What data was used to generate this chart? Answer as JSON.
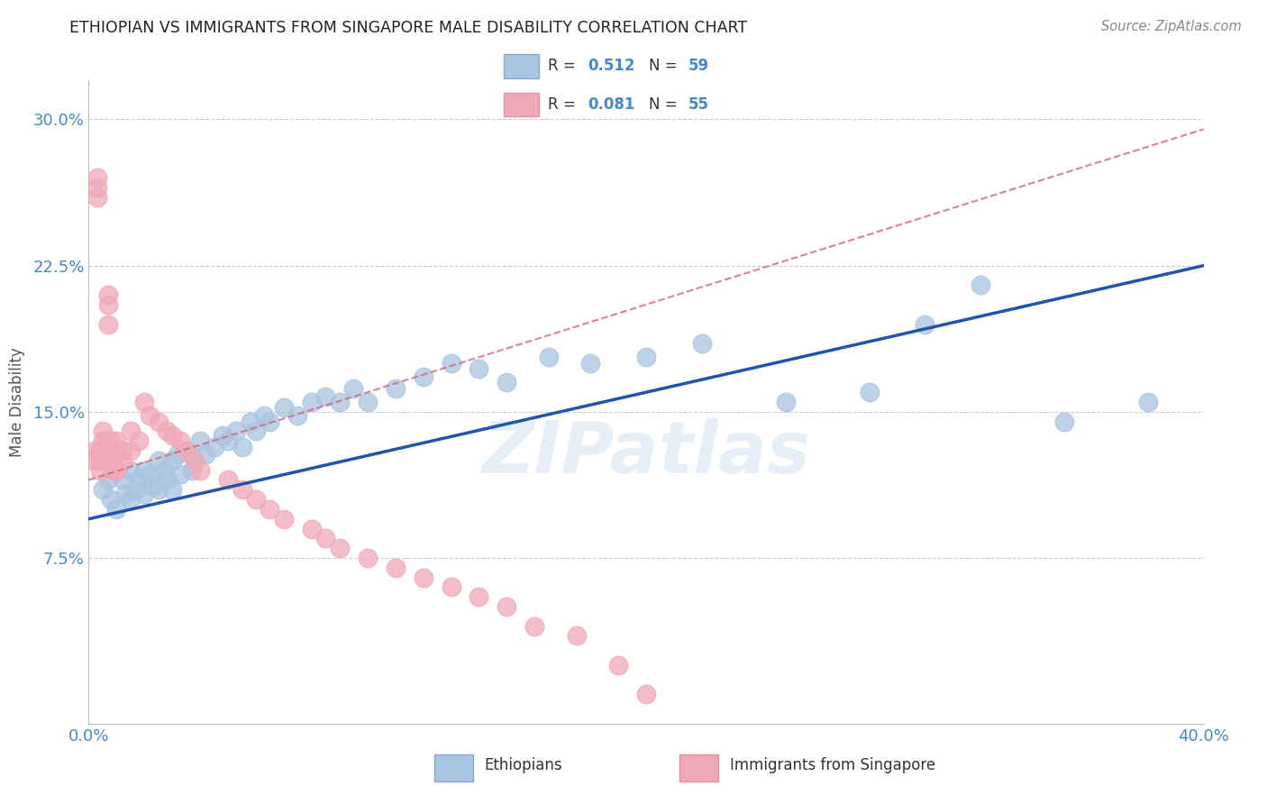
{
  "title": "ETHIOPIAN VS IMMIGRANTS FROM SINGAPORE MALE DISABILITY CORRELATION CHART",
  "source": "Source: ZipAtlas.com",
  "ylabel_text": "Male Disability",
  "xlim": [
    0.0,
    0.4
  ],
  "ylim": [
    -0.01,
    0.32
  ],
  "blue_color": "#a8c4e0",
  "pink_color": "#f0a8b8",
  "blue_line_color": "#2255aa",
  "pink_line_color": "#cc6677",
  "watermark": "ZIPatlas",
  "blue_scatter_x": [
    0.005,
    0.007,
    0.008,
    0.01,
    0.01,
    0.012,
    0.013,
    0.015,
    0.015,
    0.017,
    0.018,
    0.02,
    0.02,
    0.022,
    0.023,
    0.025,
    0.025,
    0.027,
    0.028,
    0.03,
    0.03,
    0.032,
    0.033,
    0.035,
    0.037,
    0.038,
    0.04,
    0.042,
    0.045,
    0.048,
    0.05,
    0.053,
    0.055,
    0.058,
    0.06,
    0.063,
    0.065,
    0.07,
    0.075,
    0.08,
    0.085,
    0.09,
    0.095,
    0.1,
    0.11,
    0.12,
    0.13,
    0.14,
    0.15,
    0.165,
    0.18,
    0.2,
    0.22,
    0.25,
    0.28,
    0.3,
    0.32,
    0.35,
    0.38
  ],
  "blue_scatter_y": [
    0.11,
    0.115,
    0.105,
    0.12,
    0.1,
    0.115,
    0.108,
    0.12,
    0.105,
    0.11,
    0.115,
    0.12,
    0.108,
    0.118,
    0.112,
    0.125,
    0.11,
    0.12,
    0.115,
    0.125,
    0.11,
    0.128,
    0.118,
    0.13,
    0.12,
    0.125,
    0.135,
    0.128,
    0.132,
    0.138,
    0.135,
    0.14,
    0.132,
    0.145,
    0.14,
    0.148,
    0.145,
    0.152,
    0.148,
    0.155,
    0.158,
    0.155,
    0.162,
    0.155,
    0.162,
    0.168,
    0.175,
    0.172,
    0.165,
    0.178,
    0.175,
    0.178,
    0.185,
    0.155,
    0.16,
    0.195,
    0.215,
    0.145,
    0.155
  ],
  "pink_scatter_x": [
    0.002,
    0.002,
    0.003,
    0.003,
    0.003,
    0.004,
    0.004,
    0.004,
    0.005,
    0.005,
    0.005,
    0.006,
    0.006,
    0.007,
    0.007,
    0.007,
    0.008,
    0.008,
    0.009,
    0.009,
    0.01,
    0.01,
    0.01,
    0.012,
    0.012,
    0.015,
    0.015,
    0.018,
    0.02,
    0.022,
    0.025,
    0.028,
    0.03,
    0.033,
    0.035,
    0.038,
    0.04,
    0.05,
    0.055,
    0.06,
    0.065,
    0.07,
    0.08,
    0.085,
    0.09,
    0.1,
    0.11,
    0.12,
    0.13,
    0.14,
    0.15,
    0.16,
    0.175,
    0.19,
    0.2
  ],
  "pink_scatter_y": [
    0.13,
    0.125,
    0.27,
    0.265,
    0.26,
    0.13,
    0.125,
    0.12,
    0.14,
    0.135,
    0.13,
    0.135,
    0.125,
    0.21,
    0.205,
    0.195,
    0.135,
    0.125,
    0.13,
    0.12,
    0.135,
    0.128,
    0.12,
    0.13,
    0.125,
    0.14,
    0.13,
    0.135,
    0.155,
    0.148,
    0.145,
    0.14,
    0.138,
    0.135,
    0.13,
    0.125,
    0.12,
    0.115,
    0.11,
    0.105,
    0.1,
    0.095,
    0.09,
    0.085,
    0.08,
    0.075,
    0.07,
    0.065,
    0.06,
    0.055,
    0.05,
    0.04,
    0.035,
    0.02,
    0.005
  ],
  "blue_line_x": [
    0.0,
    0.4
  ],
  "blue_line_y": [
    0.095,
    0.225
  ],
  "pink_line_x": [
    0.0,
    0.4
  ],
  "pink_line_y": [
    0.115,
    0.295
  ],
  "grid_color": "#cccccc",
  "background_color": "#ffffff",
  "ytick_vals": [
    0.0,
    0.075,
    0.15,
    0.225,
    0.3
  ],
  "ytick_labels": [
    "",
    "7.5%",
    "15.0%",
    "22.5%",
    "30.0%"
  ],
  "xtick_vals": [
    0.0,
    0.1,
    0.2,
    0.3,
    0.4
  ],
  "xtick_labels": [
    "0.0%",
    "",
    "",
    "",
    "40.0%"
  ]
}
